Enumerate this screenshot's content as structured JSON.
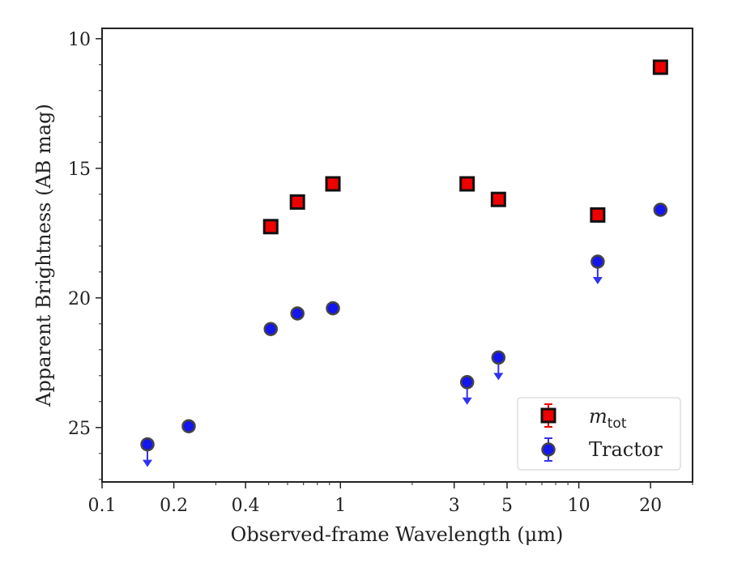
{
  "chart_data": {
    "type": "scatter",
    "xlabel": "Observed-frame Wavelength (μm)",
    "ylabel": "Apparent Brightness (AB mag)",
    "xscale": "log",
    "xlim": [
      0.1,
      30
    ],
    "ylim": [
      27.1,
      9.6
    ],
    "y_inverted": true,
    "x_ticks": [
      0.1,
      0.2,
      0.4,
      1,
      3,
      5,
      10,
      20
    ],
    "x_tick_labels": [
      "0.1",
      "0.2",
      "0.4",
      "1",
      "3",
      "5",
      "10",
      "20"
    ],
    "y_ticks": [
      10,
      15,
      20,
      25
    ],
    "y_tick_labels": [
      "10",
      "15",
      "20",
      "25"
    ],
    "legend_position": "lower-right",
    "series": [
      {
        "name": "m_tot",
        "label_main": "m",
        "label_sub": "tot",
        "marker": "square",
        "color": "#ee0000",
        "edge_color": "#111111",
        "points": [
          {
            "x": 0.51,
            "y": 17.25
          },
          {
            "x": 0.66,
            "y": 16.3
          },
          {
            "x": 0.93,
            "y": 15.6
          },
          {
            "x": 3.4,
            "y": 15.6
          },
          {
            "x": 4.6,
            "y": 16.2
          },
          {
            "x": 12.0,
            "y": 16.8
          },
          {
            "x": 22.0,
            "y": 11.1
          }
        ]
      },
      {
        "name": "Tractor",
        "label_main": "Tractor",
        "marker": "circle",
        "color": "#1515ee",
        "edge_color": "#444444",
        "points": [
          {
            "x": 0.155,
            "y": 25.65,
            "upper_limit": true
          },
          {
            "x": 0.231,
            "y": 24.95
          },
          {
            "x": 0.51,
            "y": 21.2
          },
          {
            "x": 0.66,
            "y": 20.6
          },
          {
            "x": 0.93,
            "y": 20.4
          },
          {
            "x": 3.4,
            "y": 23.25,
            "upper_limit": true
          },
          {
            "x": 4.6,
            "y": 22.3,
            "upper_limit": true
          },
          {
            "x": 12.0,
            "y": 18.6,
            "upper_limit": true
          },
          {
            "x": 22.0,
            "y": 16.6
          }
        ]
      }
    ]
  }
}
